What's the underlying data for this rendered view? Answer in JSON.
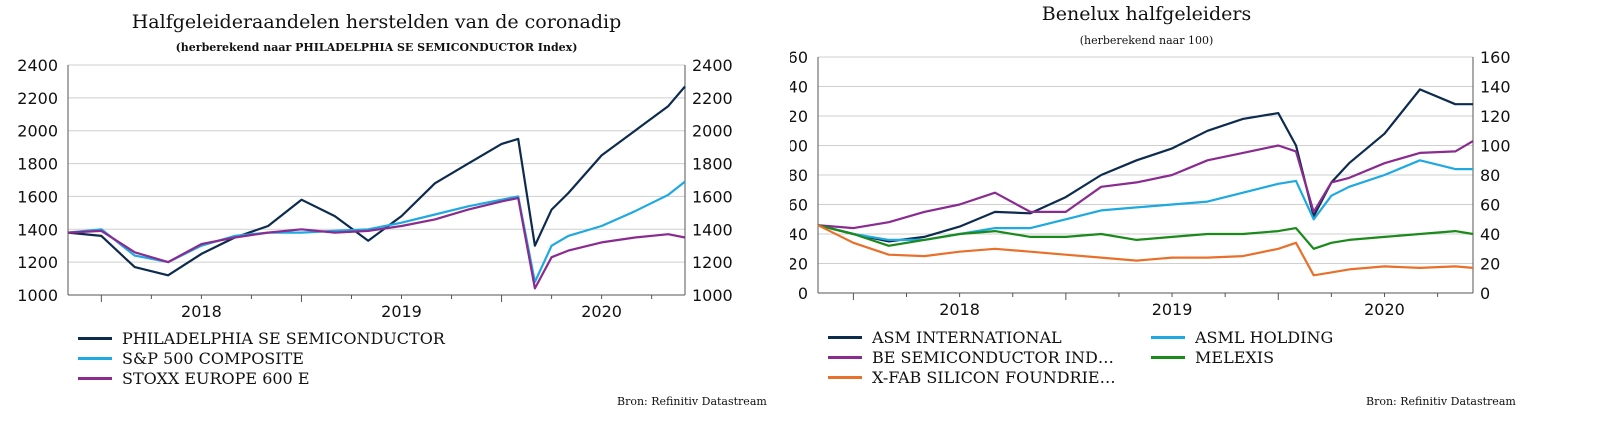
{
  "charts": [
    {
      "title": "Halfgeleideraandelen herstelden van de coronadip",
      "subtitle": "(herberekend naar PHILADELPHIA SE SEMICONDUCTOR Index)",
      "source": "Bron: Refinitiv Datastream",
      "legend": [
        "PHILADELPHIA SE SEMICONDUCTOR",
        "S&P 500 COMPOSITE",
        "STOXX EUROPE 600 E"
      ]
    },
    {
      "title": "Benelux halfgeleiders",
      "subtitle": "(herberekend naar 100)",
      "source": "Bron: Refinitiv Datastream",
      "legend": [
        "ASM INTERNATIONAL",
        "ASML HOLDING",
        "BE SEMICONDUCTOR IND…",
        "MELEXIS",
        "X-FAB SILICON FOUNDRIE…"
      ]
    }
  ],
  "chart_data": [
    {
      "type": "line",
      "title": "Halfgeleideraandelen herstelden van de coronadip",
      "subtitle": "(herberekend naar PHILADELPHIA SE SEMICONDUCTOR Index)",
      "xlim": [
        "2017-11",
        "2020-12"
      ],
      "xticks": [
        "2018",
        "2019",
        "2020"
      ],
      "ylim": [
        1000,
        2400
      ],
      "yticks": [
        1000,
        1200,
        1400,
        1600,
        1800,
        2000,
        2200,
        2400
      ],
      "grid": true,
      "legend_position": "bottom-left",
      "x": [
        "2017-11",
        "2018-01",
        "2018-03",
        "2018-05",
        "2018-07",
        "2018-09",
        "2018-11",
        "2019-01",
        "2019-03",
        "2019-05",
        "2019-07",
        "2019-09",
        "2019-11",
        "2020-01",
        "2020-02",
        "2020-03",
        "2020-04",
        "2020-05",
        "2020-07",
        "2020-09",
        "2020-11",
        "2020-12"
      ],
      "series": [
        {
          "name": "PHILADELPHIA SE SEMICONDUCTOR",
          "color": "#0d2b4e",
          "values": [
            1380,
            1360,
            1170,
            1120,
            1250,
            1350,
            1420,
            1580,
            1480,
            1330,
            1480,
            1680,
            1800,
            1920,
            1950,
            1300,
            1520,
            1620,
            1850,
            2000,
            2150,
            2270
          ]
        },
        {
          "name": "S&P 500 COMPOSITE",
          "color": "#1ea9e0",
          "values": [
            1380,
            1400,
            1240,
            1200,
            1300,
            1360,
            1380,
            1380,
            1390,
            1400,
            1440,
            1490,
            1540,
            1580,
            1600,
            1080,
            1300,
            1360,
            1420,
            1510,
            1610,
            1690
          ]
        },
        {
          "name": "STOXX EUROPE 600 E",
          "color": "#8a2b8f",
          "values": [
            1380,
            1390,
            1260,
            1200,
            1310,
            1350,
            1380,
            1400,
            1380,
            1390,
            1420,
            1460,
            1520,
            1570,
            1590,
            1040,
            1230,
            1270,
            1320,
            1350,
            1370,
            1350
          ]
        }
      ]
    },
    {
      "type": "line",
      "title": "Benelux halfgeleiders",
      "subtitle": "(herberekend naar 100)",
      "xlim": [
        "2017-11",
        "2020-12"
      ],
      "xticks": [
        "2018",
        "2019",
        "2020"
      ],
      "ylim": [
        0,
        160
      ],
      "yticks": [
        0,
        20,
        40,
        60,
        80,
        100,
        120,
        140,
        160
      ],
      "grid": true,
      "legend_position": "bottom",
      "x": [
        "2017-11",
        "2018-01",
        "2018-03",
        "2018-05",
        "2018-07",
        "2018-09",
        "2018-11",
        "2019-01",
        "2019-03",
        "2019-05",
        "2019-07",
        "2019-09",
        "2019-11",
        "2020-01",
        "2020-02",
        "2020-03",
        "2020-04",
        "2020-05",
        "2020-07",
        "2020-09",
        "2020-11",
        "2020-12"
      ],
      "series": [
        {
          "name": "ASM INTERNATIONAL",
          "color": "#0d2b4e",
          "values": [
            46,
            40,
            35,
            38,
            45,
            55,
            54,
            65,
            80,
            90,
            98,
            110,
            118,
            122,
            100,
            52,
            75,
            88,
            108,
            138,
            128,
            128
          ]
        },
        {
          "name": "ASML HOLDING",
          "color": "#1ea9e0",
          "values": [
            46,
            40,
            36,
            36,
            40,
            44,
            44,
            50,
            56,
            58,
            60,
            62,
            68,
            74,
            76,
            50,
            66,
            72,
            80,
            90,
            84,
            84
          ]
        },
        {
          "name": "BE SEMICONDUCTOR IND…",
          "color": "#8a2b8f",
          "values": [
            46,
            44,
            48,
            55,
            60,
            68,
            55,
            55,
            72,
            75,
            80,
            90,
            95,
            100,
            96,
            55,
            75,
            78,
            88,
            95,
            96,
            103
          ]
        },
        {
          "name": "MELEXIS",
          "color": "#1a8a1a",
          "values": [
            46,
            40,
            32,
            36,
            40,
            42,
            38,
            38,
            40,
            36,
            38,
            40,
            40,
            42,
            44,
            30,
            34,
            36,
            38,
            40,
            42,
            40
          ]
        },
        {
          "name": "X-FAB SILICON FOUNDRIE…",
          "color": "#e8702a",
          "values": [
            46,
            34,
            26,
            25,
            28,
            30,
            28,
            26,
            24,
            22,
            24,
            24,
            25,
            30,
            34,
            12,
            14,
            16,
            18,
            17,
            18,
            17
          ]
        }
      ]
    }
  ]
}
